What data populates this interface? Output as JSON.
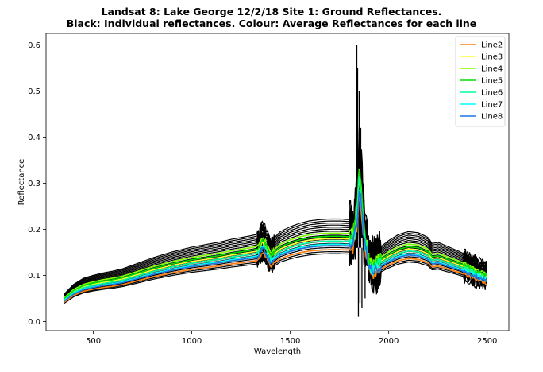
{
  "chart_data": {
    "type": "line",
    "title_line1": "Landsat 8: Lake George 12/2/18 Site 1: Ground Reflectances.",
    "title_line2": "Black: Individual reflectances. Colour: Average Reflectances for each line",
    "xlabel": "Wavelength",
    "ylabel": "Reflectance",
    "xlim": [
      260,
      2610
    ],
    "ylim": [
      -0.02,
      0.625
    ],
    "xticks": [
      500,
      1000,
      1500,
      2000,
      2500
    ],
    "yticks": [
      0.0,
      0.1,
      0.2,
      0.3,
      0.4,
      0.5,
      0.6
    ],
    "ytick_labels": [
      "0.0",
      "0.1",
      "0.2",
      "0.3",
      "0.4",
      "0.5",
      "0.6"
    ],
    "grid": false,
    "legend_position": "top-right",
    "individual_color": "#000000",
    "individual_spectra": {
      "min_multiplier": 0.86,
      "max_multiplier": 1.3,
      "count": 18,
      "peak_max": 0.6,
      "peak_min": 0.01
    },
    "base_spectrum": {
      "x": [
        350,
        400,
        450,
        500,
        550,
        600,
        650,
        700,
        750,
        800,
        850,
        900,
        950,
        1000,
        1050,
        1100,
        1150,
        1200,
        1250,
        1300,
        1340,
        1360,
        1380,
        1400,
        1420,
        1450,
        1500,
        1550,
        1600,
        1650,
        1700,
        1750,
        1800,
        1820,
        1840,
        1850,
        1860,
        1870,
        1880,
        1890,
        1900,
        1920,
        1950,
        2000,
        2050,
        2100,
        2150,
        2200,
        2220,
        2250,
        2300,
        2350,
        2400,
        2450,
        2480,
        2500
      ],
      "y": [
        0.045,
        0.062,
        0.072,
        0.077,
        0.081,
        0.084,
        0.088,
        0.094,
        0.1,
        0.106,
        0.111,
        0.116,
        0.12,
        0.124,
        0.127,
        0.13,
        0.133,
        0.137,
        0.14,
        0.143,
        0.146,
        0.165,
        0.15,
        0.132,
        0.14,
        0.15,
        0.158,
        0.164,
        0.168,
        0.17,
        0.171,
        0.171,
        0.17,
        0.175,
        0.23,
        0.3,
        0.27,
        0.21,
        0.17,
        0.15,
        0.12,
        0.11,
        0.122,
        0.135,
        0.145,
        0.15,
        0.148,
        0.14,
        0.13,
        0.132,
        0.125,
        0.118,
        0.11,
        0.1,
        0.095,
        0.092
      ]
    },
    "series": [
      {
        "name": "Line2",
        "color": "#ff7f0e",
        "multiplier": 0.91
      },
      {
        "name": "Line3",
        "color": "#ffff33",
        "multiplier": 1.05
      },
      {
        "name": "Line4",
        "color": "#80ff00",
        "multiplier": 1.12
      },
      {
        "name": "Line5",
        "color": "#00dd00",
        "multiplier": 1.08
      },
      {
        "name": "Line6",
        "color": "#00ff99",
        "multiplier": 1.02
      },
      {
        "name": "Line7",
        "color": "#00ffff",
        "multiplier": 0.98
      },
      {
        "name": "Line8",
        "color": "#1f77e0",
        "multiplier": 0.96
      }
    ]
  }
}
